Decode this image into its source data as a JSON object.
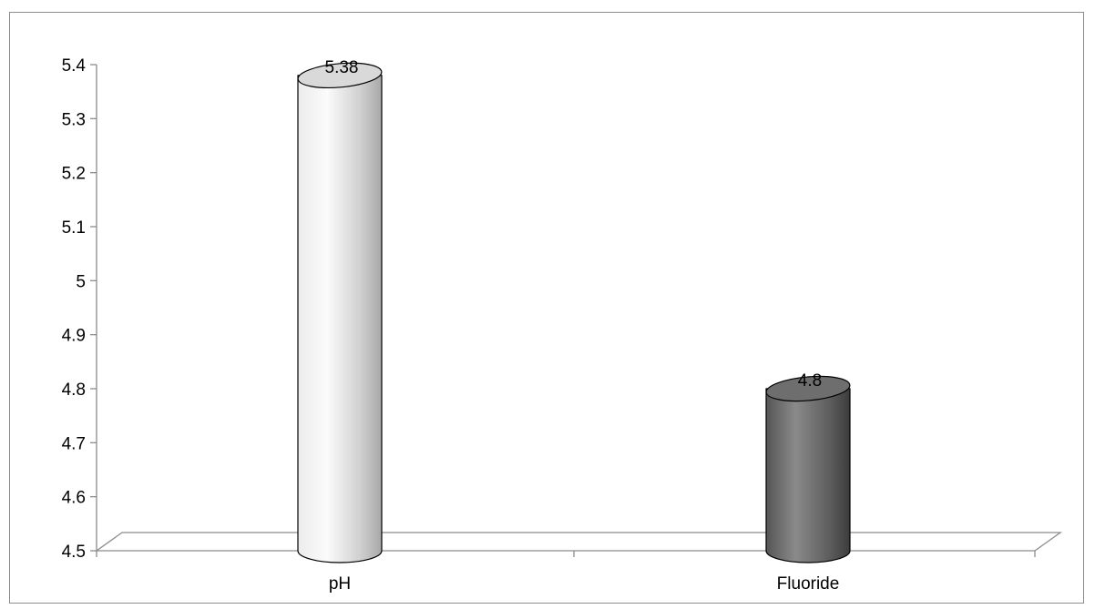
{
  "chart_data": {
    "type": "bar",
    "style": "3d-cylinder",
    "categories": [
      "pH",
      "Fluoride"
    ],
    "values": [
      5.38,
      4.8
    ],
    "data_labels": [
      "5.38",
      "4.8"
    ],
    "yticks": [
      "4.5",
      "4.6",
      "4.7",
      "4.8",
      "4.9",
      "5",
      "5.1",
      "5.2",
      "5.3",
      "5.4"
    ],
    "ylim": [
      4.5,
      5.4
    ],
    "title": "",
    "xlabel": "",
    "ylabel": "",
    "grid": false,
    "legend": false,
    "colors": {
      "pH": "#d9d9d9",
      "Fluoride": "#6e6e6e",
      "axis": "#8c8c8c"
    }
  }
}
